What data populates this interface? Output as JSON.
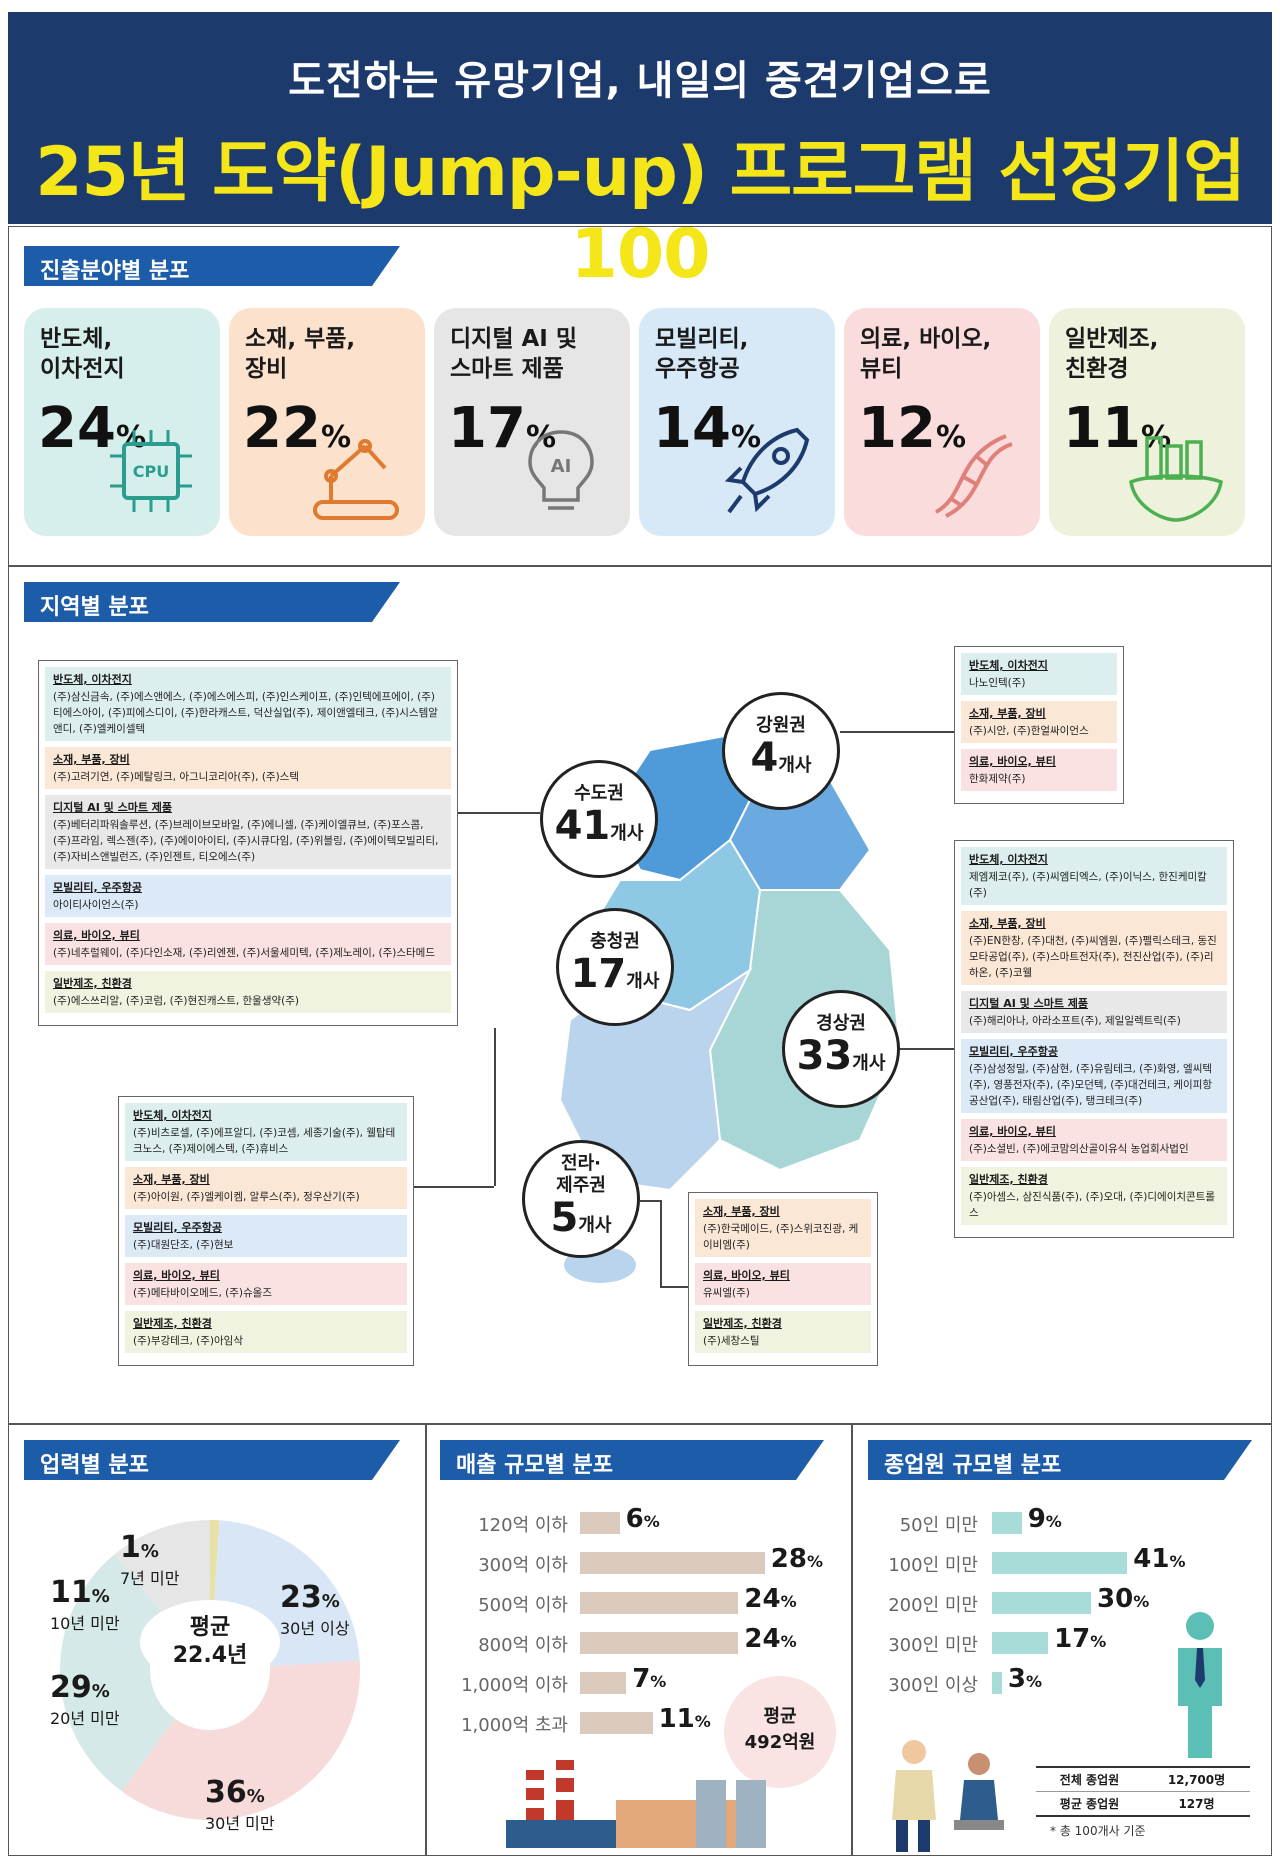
{
  "header": {
    "subtitle": "도전하는 유망기업, 내일의 중견기업으로",
    "title": "25년 도약(Jump-up) 프로그램 선정기업 100"
  },
  "sections": {
    "field": "진출분야별 분포",
    "region": "지역별 분포",
    "age": "업력별 분포",
    "sales": "매출 규모별 분포",
    "employees": "종업원 규모별 분포"
  },
  "fields": [
    {
      "label": "반도체,\n이차전지",
      "value": "24",
      "pct": "%",
      "color": "#d6eeec",
      "icon": "cpu-icon"
    },
    {
      "label": "소재, 부품,\n장비",
      "value": "22",
      "pct": "%",
      "color": "#fce2cd",
      "icon": "robot-arm-icon"
    },
    {
      "label": "디지털 AI 및\n스마트 제품",
      "value": "17",
      "pct": "%",
      "color": "#e6e6e6",
      "icon": "ai-bulb-icon"
    },
    {
      "label": "모빌리티,\n우주항공",
      "value": "14",
      "pct": "%",
      "color": "#d7e8f7",
      "icon": "rocket-icon"
    },
    {
      "label": "의료, 바이오,\n뷰티",
      "value": "12",
      "pct": "%",
      "color": "#fbdcdc",
      "icon": "dna-icon"
    },
    {
      "label": "일반제조,\n친환경",
      "value": "11",
      "pct": "%",
      "color": "#eef2dc",
      "icon": "eco-factory-icon"
    }
  ],
  "regions": [
    {
      "name": "수도권",
      "count": "41",
      "unit": "개사",
      "groups": [
        {
          "head": "반도체, 이차전지",
          "body": "(주)삼신금속, (주)에스앤에스, (주)에스에스피, (주)인스케이프, (주)인텍에프에이, (주)티에스아이, (주)피에스디이, (주)한라캐스트, 덕산실업(주), 제이앤엘테크, (주)시스템알앤디, (주)엘케이셀텍"
        },
        {
          "head": "소재, 부품, 장비",
          "body": "(주)고려기연, (주)메탈링크, 아그니코리아(주), (주)스텍"
        },
        {
          "head": "디지털 AI 및 스마트 제품",
          "body": "(주)베터리파워솔루션, (주)브레이브모바일, (주)에니셀, (주)케이엘큐브, (주)포스콤, (주)프라임, 렉스젠(주), (주)에이아이티, (주)시큐다임, (주)위블링, (주)에이텍모빌리티, (주)자비스앤빌런즈, (주)인젠트, 티오에스(주)"
        },
        {
          "head": "모빌리티, 우주항공",
          "body": "아이티사이언스(주)"
        },
        {
          "head": "의료, 바이오, 뷰티",
          "body": "(주)네추럴웨이, (주)다인소재, (주)리엔젠, (주)서울세미텍, (주)제노레이, (주)스타메드"
        },
        {
          "head": "일반제조, 친환경",
          "body": "(주)에스쓰리알, (주)코럼, (주)현진캐스트, 한울생약(주)"
        }
      ]
    },
    {
      "name": "강원권",
      "count": "4",
      "unit": "개사",
      "groups": [
        {
          "head": "반도체, 이차전지",
          "body": "나노인텍(주)"
        },
        {
          "head": "소재, 부품, 장비",
          "body": "(주)시안, (주)한얼싸이언스"
        },
        {
          "head": "의료, 바이오, 뷰티",
          "body": "한화제약(주)"
        }
      ]
    },
    {
      "name": "충청권",
      "count": "17",
      "unit": "개사",
      "groups": [
        {
          "head": "반도체, 이차전지",
          "body": "(주)비츠로셀, (주)에프알디, (주)코셈, 세종기술(주), 웰탑테크노스, (주)제이에스텍, (주)휴비스"
        },
        {
          "head": "소재, 부품, 장비",
          "body": "(주)아이원, (주)엘케이켐, 알루스(주), 정우산기(주)"
        },
        {
          "head": "모빌리티, 우주항공",
          "body": "(주)대원단조, (주)현보"
        },
        {
          "head": "의료, 바이오, 뷰티",
          "body": "(주)메타바이오메드, (주)슈올즈"
        },
        {
          "head": "일반제조, 친환경",
          "body": "(주)부강테크, (주)아임삭"
        }
      ]
    },
    {
      "name": "경상권",
      "count": "33",
      "unit": "개사",
      "groups": [
        {
          "head": "반도체, 이차전지",
          "body": "제엠제코(주), (주)씨엠티엑스, (주)이닉스, 한진케미칼(주)"
        },
        {
          "head": "소재, 부품, 장비",
          "body": "(주)EN한창, (주)대천, (주)씨엠원, (주)펠릭스테크, 동진모타공업(주), (주)스마트전자(주), 전진산업(주), (주)리하온, (주)코웰"
        },
        {
          "head": "디지털 AI 및 스마트 제품",
          "body": "(주)해리아나, 아라소프트(주), 제일일렉트릭(주)"
        },
        {
          "head": "모빌리티, 우주항공",
          "body": "(주)삼성정밀, (주)삼현, (주)유림테크, (주)화영, 엘씨텍(주), 영풍전자(주), (주)모던텍, (주)대건테크, 케이피항공산업(주), 태림산업(주), 탱크테크(주)"
        },
        {
          "head": "의료, 바이오, 뷰티",
          "body": "(주)소셜빈, (주)에코맘의산골이유식 농업회사법인"
        },
        {
          "head": "일반제조, 친환경",
          "body": "(주)아셈스, 삼진식품(주), (주)오대, (주)디에이치콘트롤스"
        }
      ]
    },
    {
      "name": "전라·\n제주권",
      "count": "5",
      "unit": "개사",
      "groups": [
        {
          "head": "소재, 부품, 장비",
          "body": "(주)한국메이드, (주)스위코진광, 케이비엠(주)"
        },
        {
          "head": "의료, 바이오, 뷰티",
          "body": "유씨엘(주)"
        },
        {
          "head": "일반제조, 친환경",
          "body": "(주)세창스틸"
        }
      ]
    }
  ],
  "chart_data": [
    {
      "type": "pie",
      "title": "업력별 분포",
      "categories": [
        "7년 미만",
        "30년 이상",
        "30년 미만",
        "20년 미만",
        "10년 미만"
      ],
      "values": [
        1,
        23,
        36,
        29,
        11
      ],
      "unit": "%",
      "colors": [
        "#e8e2a8",
        "#d9e6f5",
        "#f7dada",
        "#d5eae8",
        "#e6e6e6"
      ],
      "center_label": "평균",
      "center_value": "22.4년"
    },
    {
      "type": "bar",
      "title": "매출 규모별 분포",
      "categories": [
        "120억 이하",
        "300억 이하",
        "500억 이하",
        "800억 이하",
        "1,000억 이하",
        "1,000억 초과"
      ],
      "values": [
        6,
        28,
        24,
        24,
        7,
        11
      ],
      "unit": "%",
      "color": "#dcc9bd",
      "avg_label": "평균",
      "avg_value": "492억원"
    },
    {
      "type": "bar",
      "title": "종업원 규모별 분포",
      "categories": [
        "50인 미만",
        "100인 미만",
        "200인 미만",
        "300인 미만",
        "300인 이상"
      ],
      "values": [
        9,
        41,
        30,
        17,
        3
      ],
      "unit": "%",
      "color": "#a8dcd8",
      "table": [
        {
          "label": "전체 종업원",
          "value": "12,700명"
        },
        {
          "label": "평균 종업원",
          "value": "127명"
        }
      ],
      "note": "* 총 100개사 기준"
    }
  ]
}
